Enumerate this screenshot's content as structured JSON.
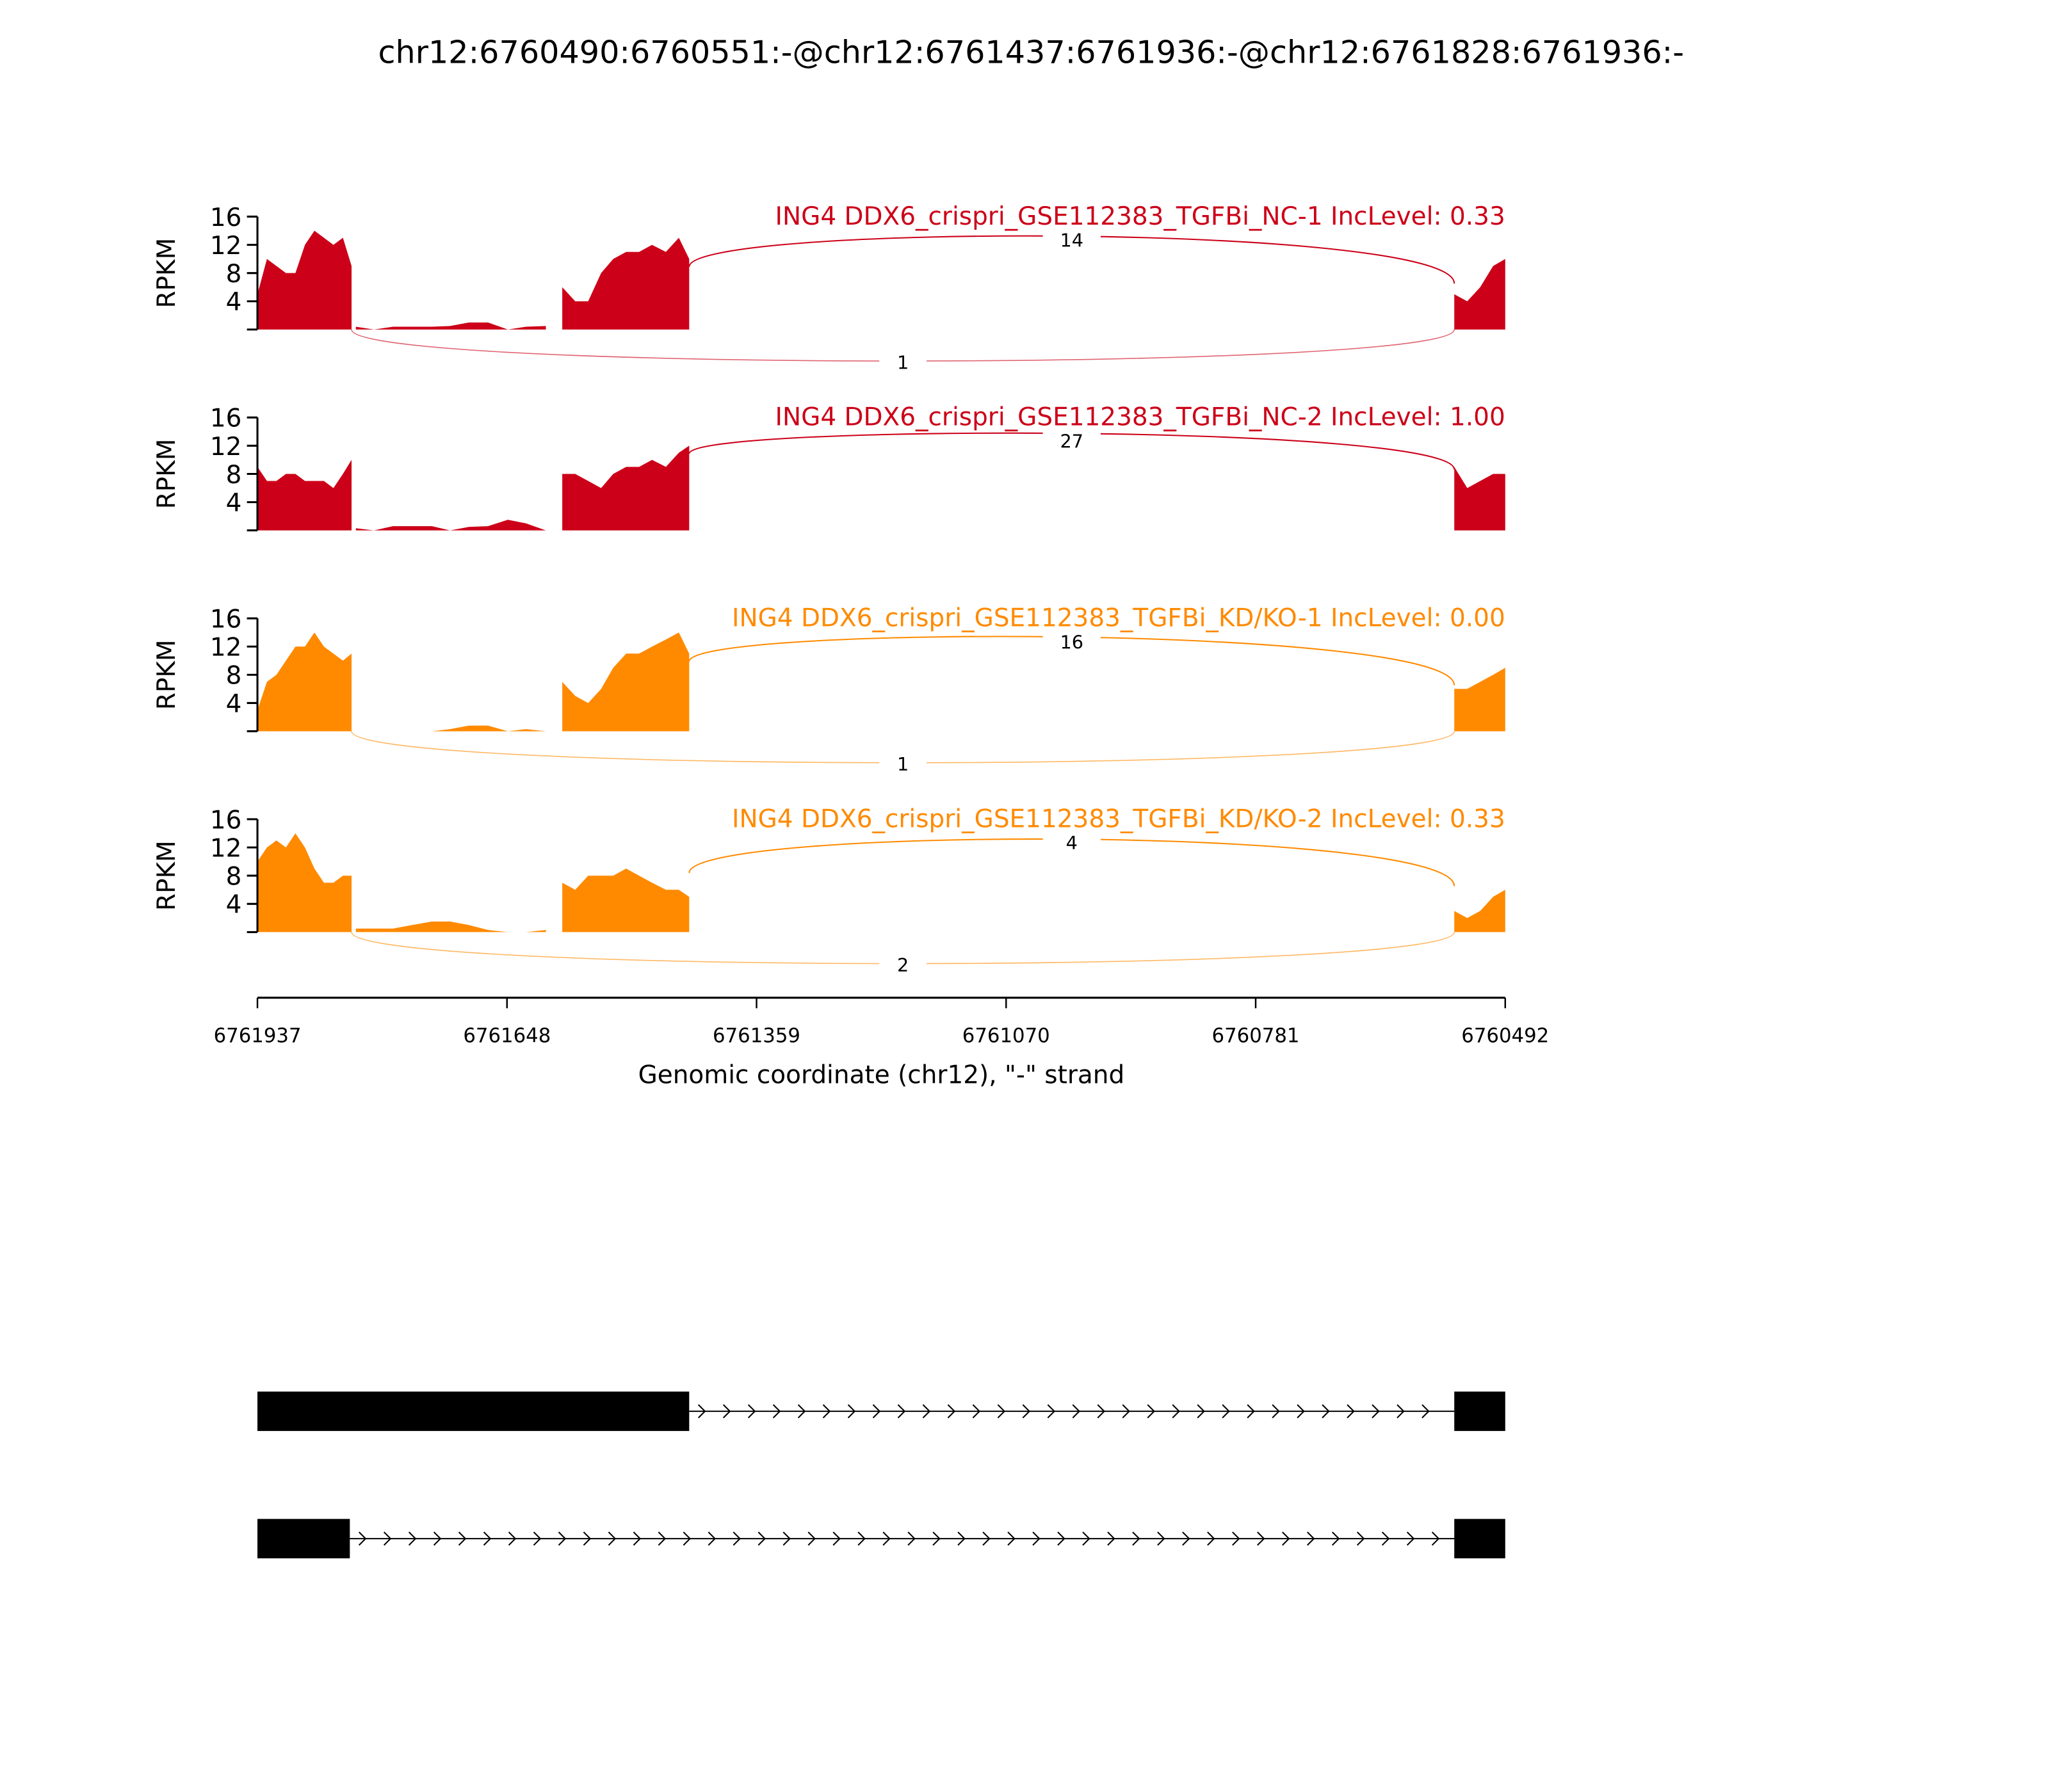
{
  "chart_data": {
    "type": "area",
    "title": "chr12:6760490:6760551:-@chr12:6761437:6761936:-@chr12:6761828:6761936:-",
    "xlabel": "Genomic coordinate (chr12), \"-\" strand",
    "ylabel": "RPKM",
    "xlim": [
      6761937,
      6760492
    ],
    "ylim": [
      0,
      16
    ],
    "xticks": [
      "6761937",
      "6761648",
      "6761359",
      "6761070",
      "6760781",
      "6760492"
    ],
    "yticks": [
      "4",
      "8",
      "12",
      "16"
    ],
    "regions": [
      {
        "name": "exon-upstream",
        "x": [
          6761937,
          6761926,
          6761915,
          6761904,
          6761893,
          6761882,
          6761871,
          6761860,
          6761849,
          6761838,
          6761828
        ]
      },
      {
        "name": "low-coverage",
        "x": [
          6761823,
          6761802,
          6761780,
          6761758,
          6761735,
          6761714,
          6761692,
          6761670,
          6761647,
          6761626,
          6761603
        ]
      },
      {
        "name": "exon-middle",
        "x": [
          6761584,
          6761569,
          6761554,
          6761539,
          6761525,
          6761510,
          6761495,
          6761480,
          6761464,
          6761449,
          6761437
        ]
      },
      {
        "name": "exon-downstream",
        "x": [
          6760551,
          6760536,
          6760521,
          6760506,
          6760492
        ]
      }
    ],
    "series": [
      {
        "name": "ING4 DDX6_crispri_GSE112383_TGFBi_NC-1 IncLevel: 0.33",
        "color": "#cc0018",
        "values": [
          [
            5,
            10,
            9,
            8,
            8,
            12,
            14,
            13,
            12,
            13,
            9
          ],
          [
            0.4,
            0,
            0.4,
            0.4,
            0.4,
            0.5,
            1,
            1,
            0,
            0.4,
            0.5
          ],
          [
            6,
            4,
            4,
            8,
            10,
            11,
            11,
            12,
            11,
            13,
            10
          ],
          [
            5,
            4,
            6,
            9,
            10
          ]
        ],
        "junctions": {
          "inclusion": "14",
          "exclusion": "1"
        }
      },
      {
        "name": "ING4 DDX6_crispri_GSE112383_TGFBi_NC-2 IncLevel: 1.00",
        "color": "#cc0018",
        "values": [
          [
            9,
            7,
            7,
            8,
            8,
            7,
            7,
            7,
            6,
            8,
            10
          ],
          [
            0.3,
            0,
            0.6,
            0.6,
            0.6,
            0,
            0.5,
            0.6,
            1.5,
            1,
            0
          ],
          [
            8,
            8,
            7,
            6,
            8,
            9,
            9,
            10,
            9,
            11,
            12
          ],
          [
            9,
            6,
            7,
            8,
            8
          ]
        ],
        "junctions": {
          "inclusion": "27",
          "exclusion": null
        }
      },
      {
        "name": "ING4 DDX6_crispri_GSE112383_TGFBi_KD/KO-1 IncLevel: 0.00",
        "color": "#ff8a00",
        "values": [
          [
            3,
            7,
            8,
            10,
            12,
            12,
            14,
            12,
            11,
            10,
            11
          ],
          [
            0,
            0,
            0,
            0,
            0,
            0.3,
            0.8,
            0.8,
            0,
            0.3,
            0
          ],
          [
            7,
            5,
            4,
            6,
            9,
            11,
            11,
            12,
            13,
            14,
            11
          ],
          [
            6,
            6,
            7,
            8,
            9
          ]
        ],
        "junctions": {
          "inclusion": "16",
          "exclusion": "1"
        }
      },
      {
        "name": "ING4 DDX6_crispri_GSE112383_TGFBi_KD/KO-2 IncLevel: 0.33",
        "color": "#ff8a00",
        "values": [
          [
            10,
            12,
            13,
            12,
            14,
            12,
            9,
            7,
            7,
            8,
            8
          ],
          [
            0.5,
            0.5,
            0.5,
            1,
            1.5,
            1.5,
            1,
            0.3,
            0,
            0,
            0.3
          ],
          [
            7,
            6,
            8,
            8,
            8,
            9,
            8,
            7,
            6,
            6,
            5
          ],
          [
            3,
            2,
            3,
            5,
            6
          ]
        ],
        "junctions": {
          "inclusion": "4",
          "exclusion": "2"
        }
      }
    ],
    "gene_models": [
      {
        "exons": [
          [
            6761937,
            6761437
          ],
          [
            6760551,
            6760492
          ]
        ]
      },
      {
        "exons": [
          [
            6761937,
            6761830
          ],
          [
            6760551,
            6760492
          ]
        ]
      }
    ],
    "grid": false
  }
}
